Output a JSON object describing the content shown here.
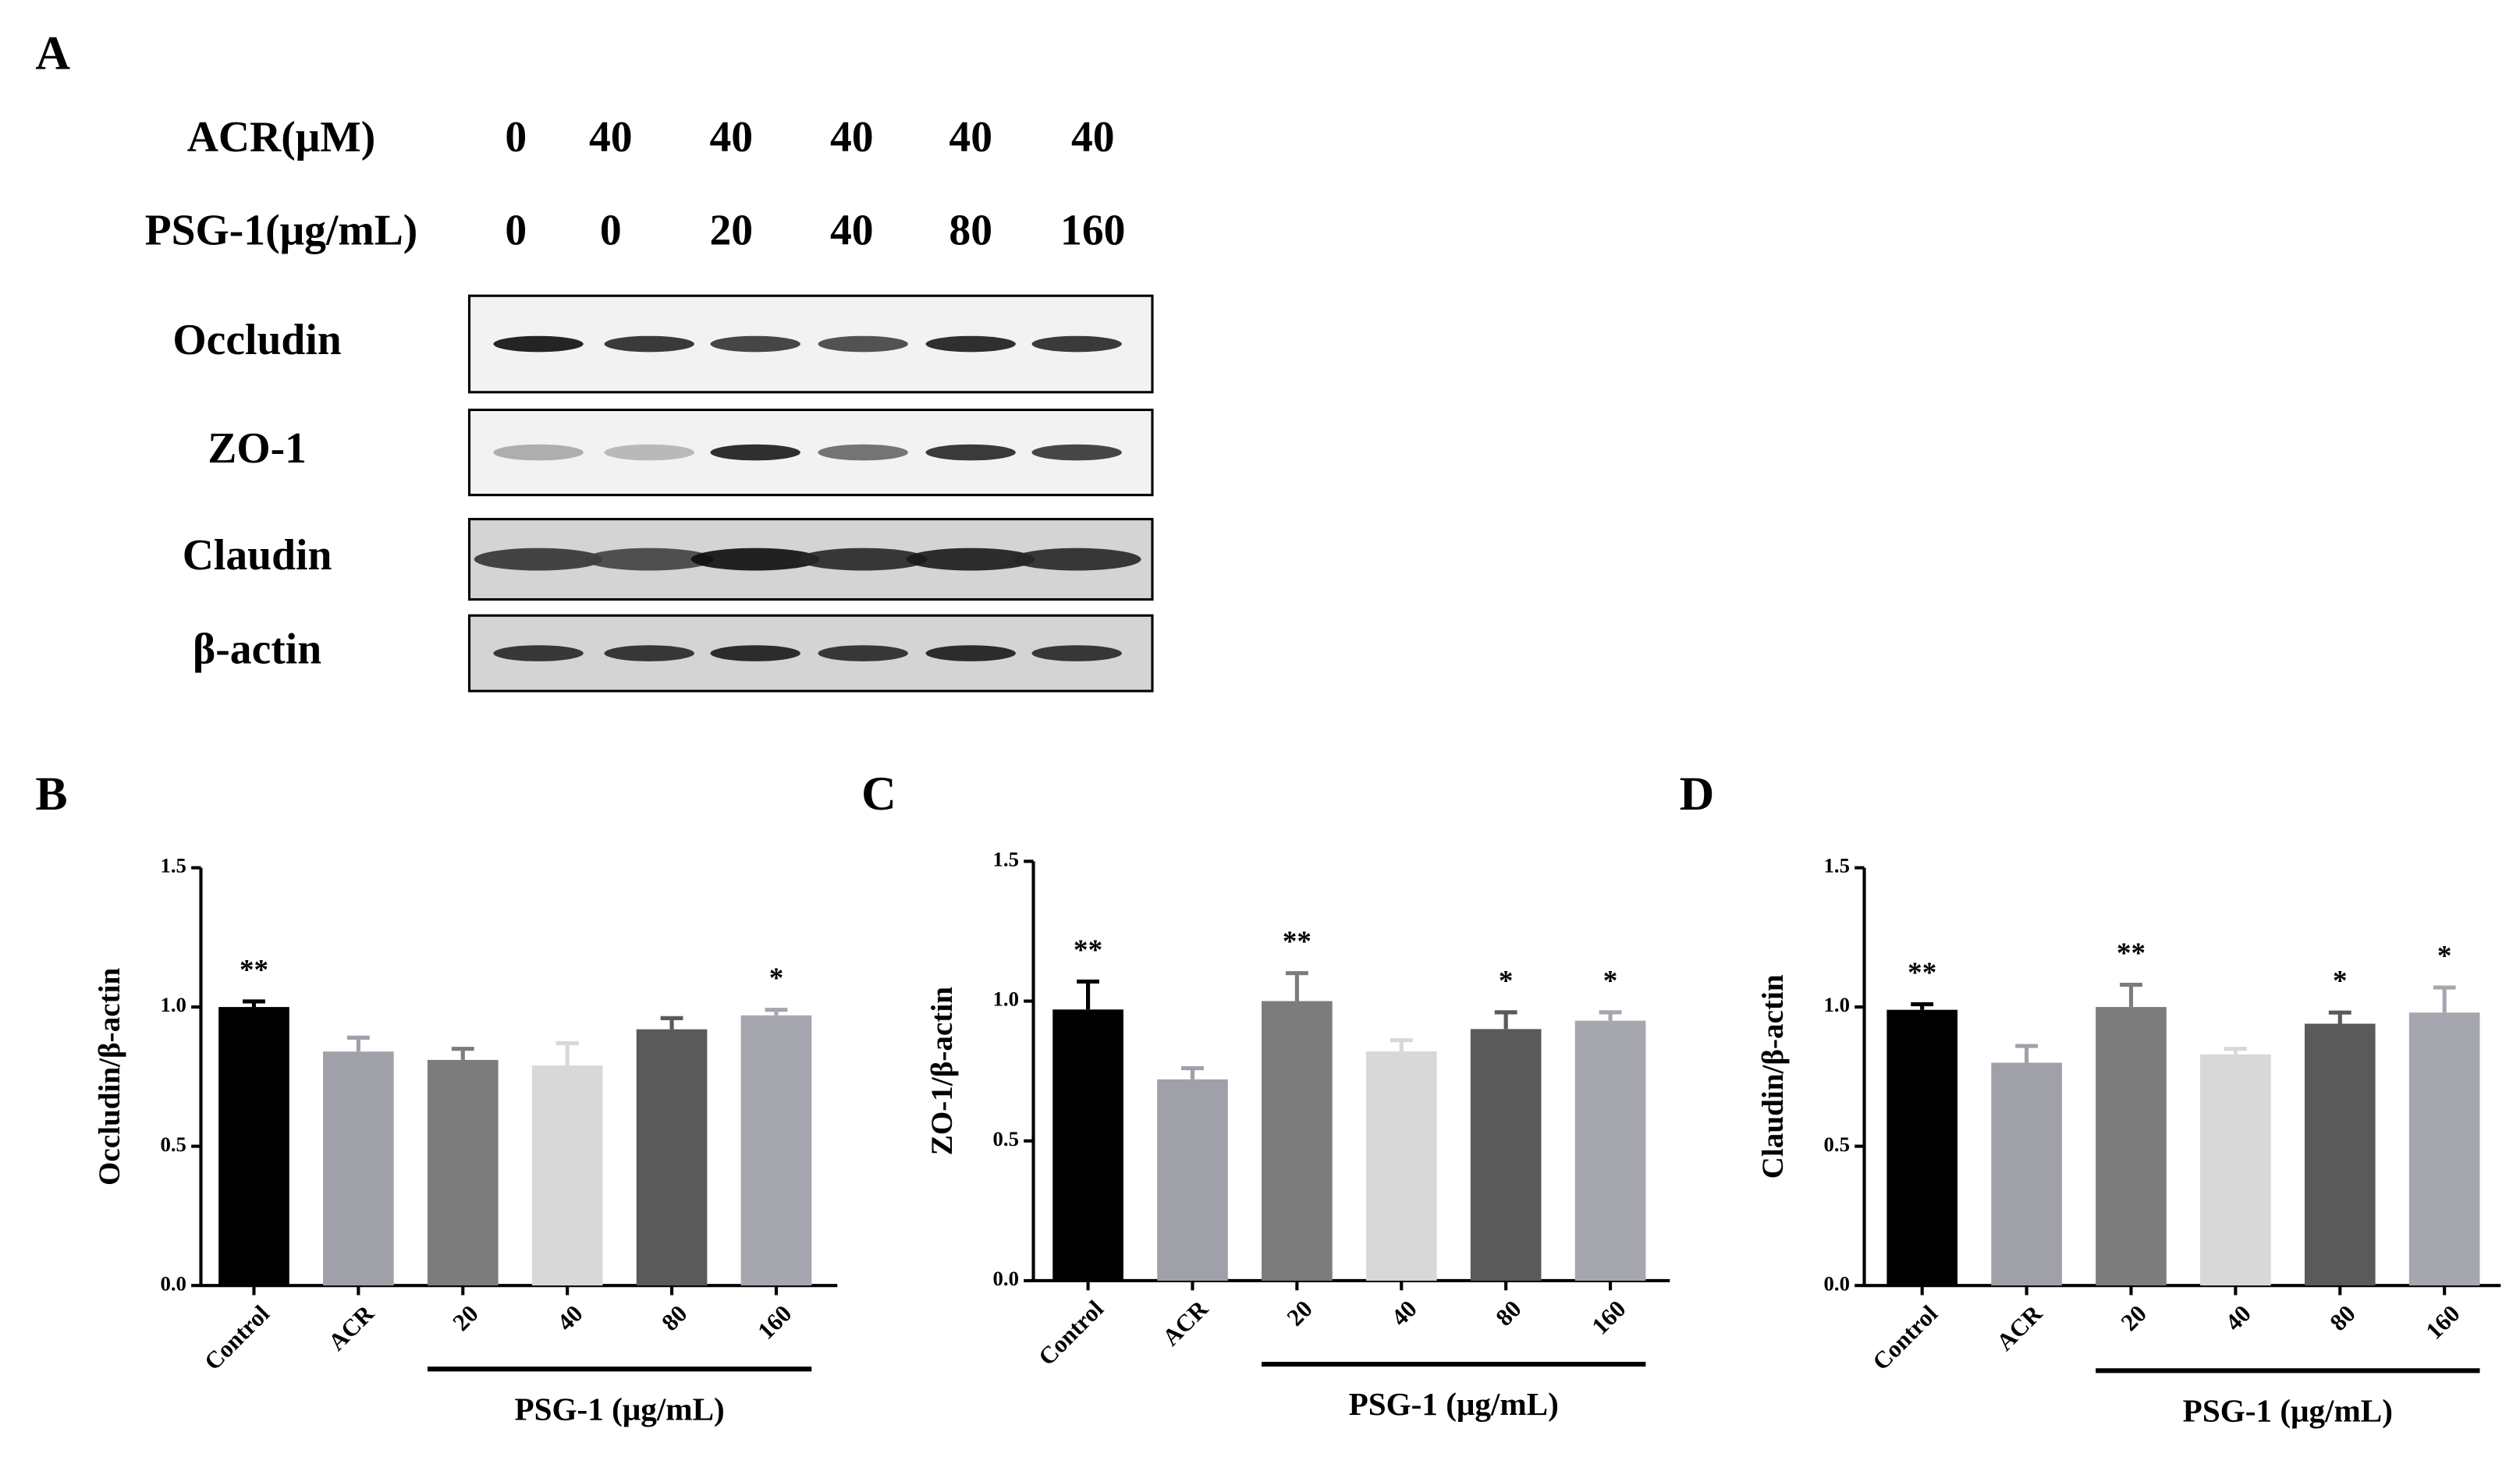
{
  "figure_a": {
    "panel": "A",
    "rows": [
      {
        "label": "ACR(μM)",
        "values": [
          0,
          40,
          40,
          40,
          40,
          40
        ]
      },
      {
        "label": "PSG-1(μg/mL)",
        "values": [
          0,
          0,
          20,
          40,
          80,
          160
        ]
      }
    ],
    "blots": [
      "Occludin",
      "ZO-1",
      "Claudin",
      "β-actin"
    ]
  },
  "chart_data": [
    {
      "type": "bar",
      "panel": "B",
      "y_label": "Occludin/β-actin",
      "categories": [
        "Control",
        "ACR",
        "20",
        "40",
        "80",
        "160"
      ],
      "group_label": "PSG-1 (μg/mL)",
      "values": [
        1.0,
        0.84,
        0.81,
        0.79,
        0.92,
        0.97
      ],
      "errors": [
        0.02,
        0.05,
        0.04,
        0.08,
        0.04,
        0.02
      ],
      "significance": [
        "**",
        null,
        null,
        null,
        null,
        "*"
      ],
      "colors": [
        "#000000",
        "#a0a0a8",
        "#7c7c7c",
        "#d8d8d8",
        "#5a5a5a",
        "#a6a6ae"
      ],
      "ylim": [
        0,
        1.5
      ],
      "yticks": [
        {
          "value": 0,
          "label": "0.0"
        },
        0.5,
        {
          "value": 1,
          "label": "1.0"
        },
        1.5
      ]
    },
    {
      "type": "bar",
      "panel": "C",
      "y_label": "ZO-1/β-actin",
      "categories": [
        "Control",
        "ACR",
        "20",
        "40",
        "80",
        "160"
      ],
      "group_label": "PSG-1 (μg/mL)",
      "values": [
        0.97,
        0.72,
        1.0,
        0.82,
        0.9,
        0.93
      ],
      "errors": [
        0.1,
        0.04,
        0.1,
        0.04,
        0.06,
        0.03
      ],
      "significance": [
        "**",
        null,
        "**",
        null,
        "*",
        "*"
      ],
      "colors": [
        "#000000",
        "#a0a0a8",
        "#7c7c7c",
        "#d8d8d8",
        "#5a5a5a",
        "#a6a6ae"
      ],
      "ylim": [
        0,
        1.5
      ],
      "yticks": [
        {
          "value": 0,
          "label": "0.0"
        },
        0.5,
        {
          "value": 1,
          "label": "1.0"
        },
        1.5
      ]
    },
    {
      "type": "bar",
      "panel": "D",
      "y_label": "Claudin/β-actin",
      "categories": [
        "Control",
        "ACR",
        "20",
        "40",
        "80",
        "160"
      ],
      "group_label": "PSG-1 (μg/mL)",
      "values": [
        0.99,
        0.8,
        1.0,
        0.83,
        0.94,
        0.98
      ],
      "errors": [
        0.02,
        0.06,
        0.08,
        0.02,
        0.04,
        0.09
      ],
      "significance": [
        "**",
        null,
        "**",
        null,
        "*",
        "*"
      ],
      "colors": [
        "#000000",
        "#a0a0a8",
        "#7c7c7c",
        "#d8d8d8",
        "#5a5a5a",
        "#a6a6ae"
      ],
      "ylim": [
        0,
        1.5
      ],
      "yticks": [
        {
          "value": 0,
          "label": "0.0"
        },
        0.5,
        {
          "value": 1,
          "label": "1.0"
        },
        1.5
      ]
    }
  ]
}
